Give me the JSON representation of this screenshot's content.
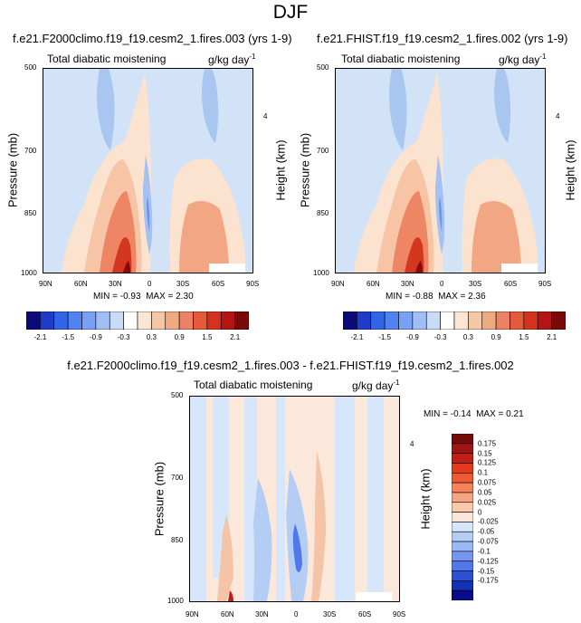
{
  "page_title": "DJF",
  "panels": [
    {
      "case_title": "f.e21.F2000climo.f19_f19.cesm2_1.fires.003 (yrs 1-9)",
      "variable_label": "Total diabatic moistening",
      "units_label": "g/kg day",
      "units_exponent": "-1",
      "min_label": "MIN = ",
      "min_value": "-0.93",
      "max_label": "MAX = ",
      "max_value": "2.30",
      "y_title": "Pressure (mb)",
      "y2_title": "Height (km)"
    },
    {
      "case_title": "f.e21.FHIST.f19_f19.cesm2_1.fires.002 (yrs 1-9)",
      "variable_label": "Total diabatic moistening",
      "units_label": "g/kg day",
      "units_exponent": "-1",
      "min_label": "MIN = ",
      "min_value": "-0.88",
      "max_label": "MAX = ",
      "max_value": "2.36",
      "y_title": "Pressure (mb)",
      "y2_title": "Height (km)"
    },
    {
      "case_title": "f.e21.F2000climo.f19_f19.cesm2_1.fires.003 - f.e21.FHIST.f19_f19.cesm2_1.fires.002",
      "variable_label": "Total diabatic moistening",
      "units_label": "g/kg day",
      "units_exponent": "-1",
      "min_label": "MIN = ",
      "min_value": "-0.14",
      "max_label": "MAX = ",
      "max_value": "0.21",
      "y_title": "Pressure (mb)",
      "y2_title": "Height (km)"
    }
  ],
  "axes": {
    "x_ticks": [
      "90N",
      "60N",
      "30N",
      "0",
      "30S",
      "60S",
      "90S"
    ],
    "y_ticks": [
      "500",
      "700",
      "850",
      "1000"
    ],
    "y2_ticks": [
      "4"
    ]
  },
  "colorbars": {
    "top_labels": [
      "-2.1",
      "-1.5",
      "-0.9",
      "-0.3",
      "0.3",
      "0.9",
      "1.5",
      "2.1"
    ],
    "top_colors": [
      "#0a0a78",
      "#1e3cc8",
      "#3264e6",
      "#5082f0",
      "#78a0f5",
      "#a0bef5",
      "#c8dcf8",
      "#ffffff",
      "#fae6d2",
      "#f5c8a5",
      "#f0aa82",
      "#eb8264",
      "#e65a3c",
      "#d2321e",
      "#b41414",
      "#780a0a"
    ],
    "diff_labels": [
      "0.175",
      "0.15",
      "0.125",
      "0.1",
      "0.075",
      "0.05",
      "0.025",
      "0",
      "-0.025",
      "-0.05",
      "-0.075",
      "-0.1",
      "-0.125",
      "-0.15",
      "-0.175"
    ],
    "diff_colors": [
      "#780a0a",
      "#a01414",
      "#c31e14",
      "#e13c1e",
      "#f05a32",
      "#f5825a",
      "#f5a582",
      "#fac8aa",
      "#fae6d7",
      "#d7e6fa",
      "#b4cdf5",
      "#9bb9f5",
      "#7896f0",
      "#5078eb",
      "#2d50d7",
      "#1432b4",
      "#0a0a8c"
    ]
  },
  "chart_data": [
    {
      "type": "heatmap",
      "title": "f.e21.F2000climo.f19_f19.cesm2_1.fires.003 (yrs 1-9)",
      "subtitle": "Total diabatic moistening",
      "units": "g/kg day-1",
      "x_label": "",
      "y_label": "Pressure (mb)",
      "y2_label": "Height (km)",
      "x_ticks": [
        "90N",
        "60N",
        "30N",
        "0",
        "30S",
        "60S",
        "90S"
      ],
      "x_range": [
        90,
        -90
      ],
      "y_ticks": [
        500,
        700,
        850,
        1000
      ],
      "y_range": [
        500,
        1000
      ],
      "y2_ticks": [
        4
      ],
      "min": -0.93,
      "max": 2.3,
      "colorbar_levels": [
        -2.1,
        -1.5,
        -0.9,
        -0.3,
        0.3,
        0.9,
        1.5,
        2.1
      ]
    },
    {
      "type": "heatmap",
      "title": "f.e21.FHIST.f19_f19.cesm2_1.fires.002 (yrs 1-9)",
      "subtitle": "Total diabatic moistening",
      "units": "g/kg day-1",
      "x_label": "",
      "y_label": "Pressure (mb)",
      "y2_label": "Height (km)",
      "x_ticks": [
        "90N",
        "60N",
        "30N",
        "0",
        "30S",
        "60S",
        "90S"
      ],
      "x_range": [
        90,
        -90
      ],
      "y_ticks": [
        500,
        700,
        850,
        1000
      ],
      "y_range": [
        500,
        1000
      ],
      "y2_ticks": [
        4
      ],
      "min": -0.88,
      "max": 2.36,
      "colorbar_levels": [
        -2.1,
        -1.5,
        -0.9,
        -0.3,
        0.3,
        0.9,
        1.5,
        2.1
      ]
    },
    {
      "type": "heatmap",
      "title": "f.e21.F2000climo.f19_f19.cesm2_1.fires.003 - f.e21.FHIST.f19_f19.cesm2_1.fires.002",
      "subtitle": "Total diabatic moistening",
      "units": "g/kg day-1",
      "x_label": "",
      "y_label": "Pressure (mb)",
      "y2_label": "Height (km)",
      "x_ticks": [
        "90N",
        "60N",
        "30N",
        "0",
        "30S",
        "60S",
        "90S"
      ],
      "x_range": [
        90,
        -90
      ],
      "y_ticks": [
        500,
        700,
        850,
        1000
      ],
      "y_range": [
        500,
        1000
      ],
      "y2_ticks": [
        4
      ],
      "min": -0.14,
      "max": 0.21,
      "colorbar_levels": [
        0.175,
        0.15,
        0.125,
        0.1,
        0.075,
        0.05,
        0.025,
        0,
        -0.025,
        -0.05,
        -0.075,
        -0.1,
        -0.125,
        -0.15,
        -0.175
      ]
    }
  ]
}
